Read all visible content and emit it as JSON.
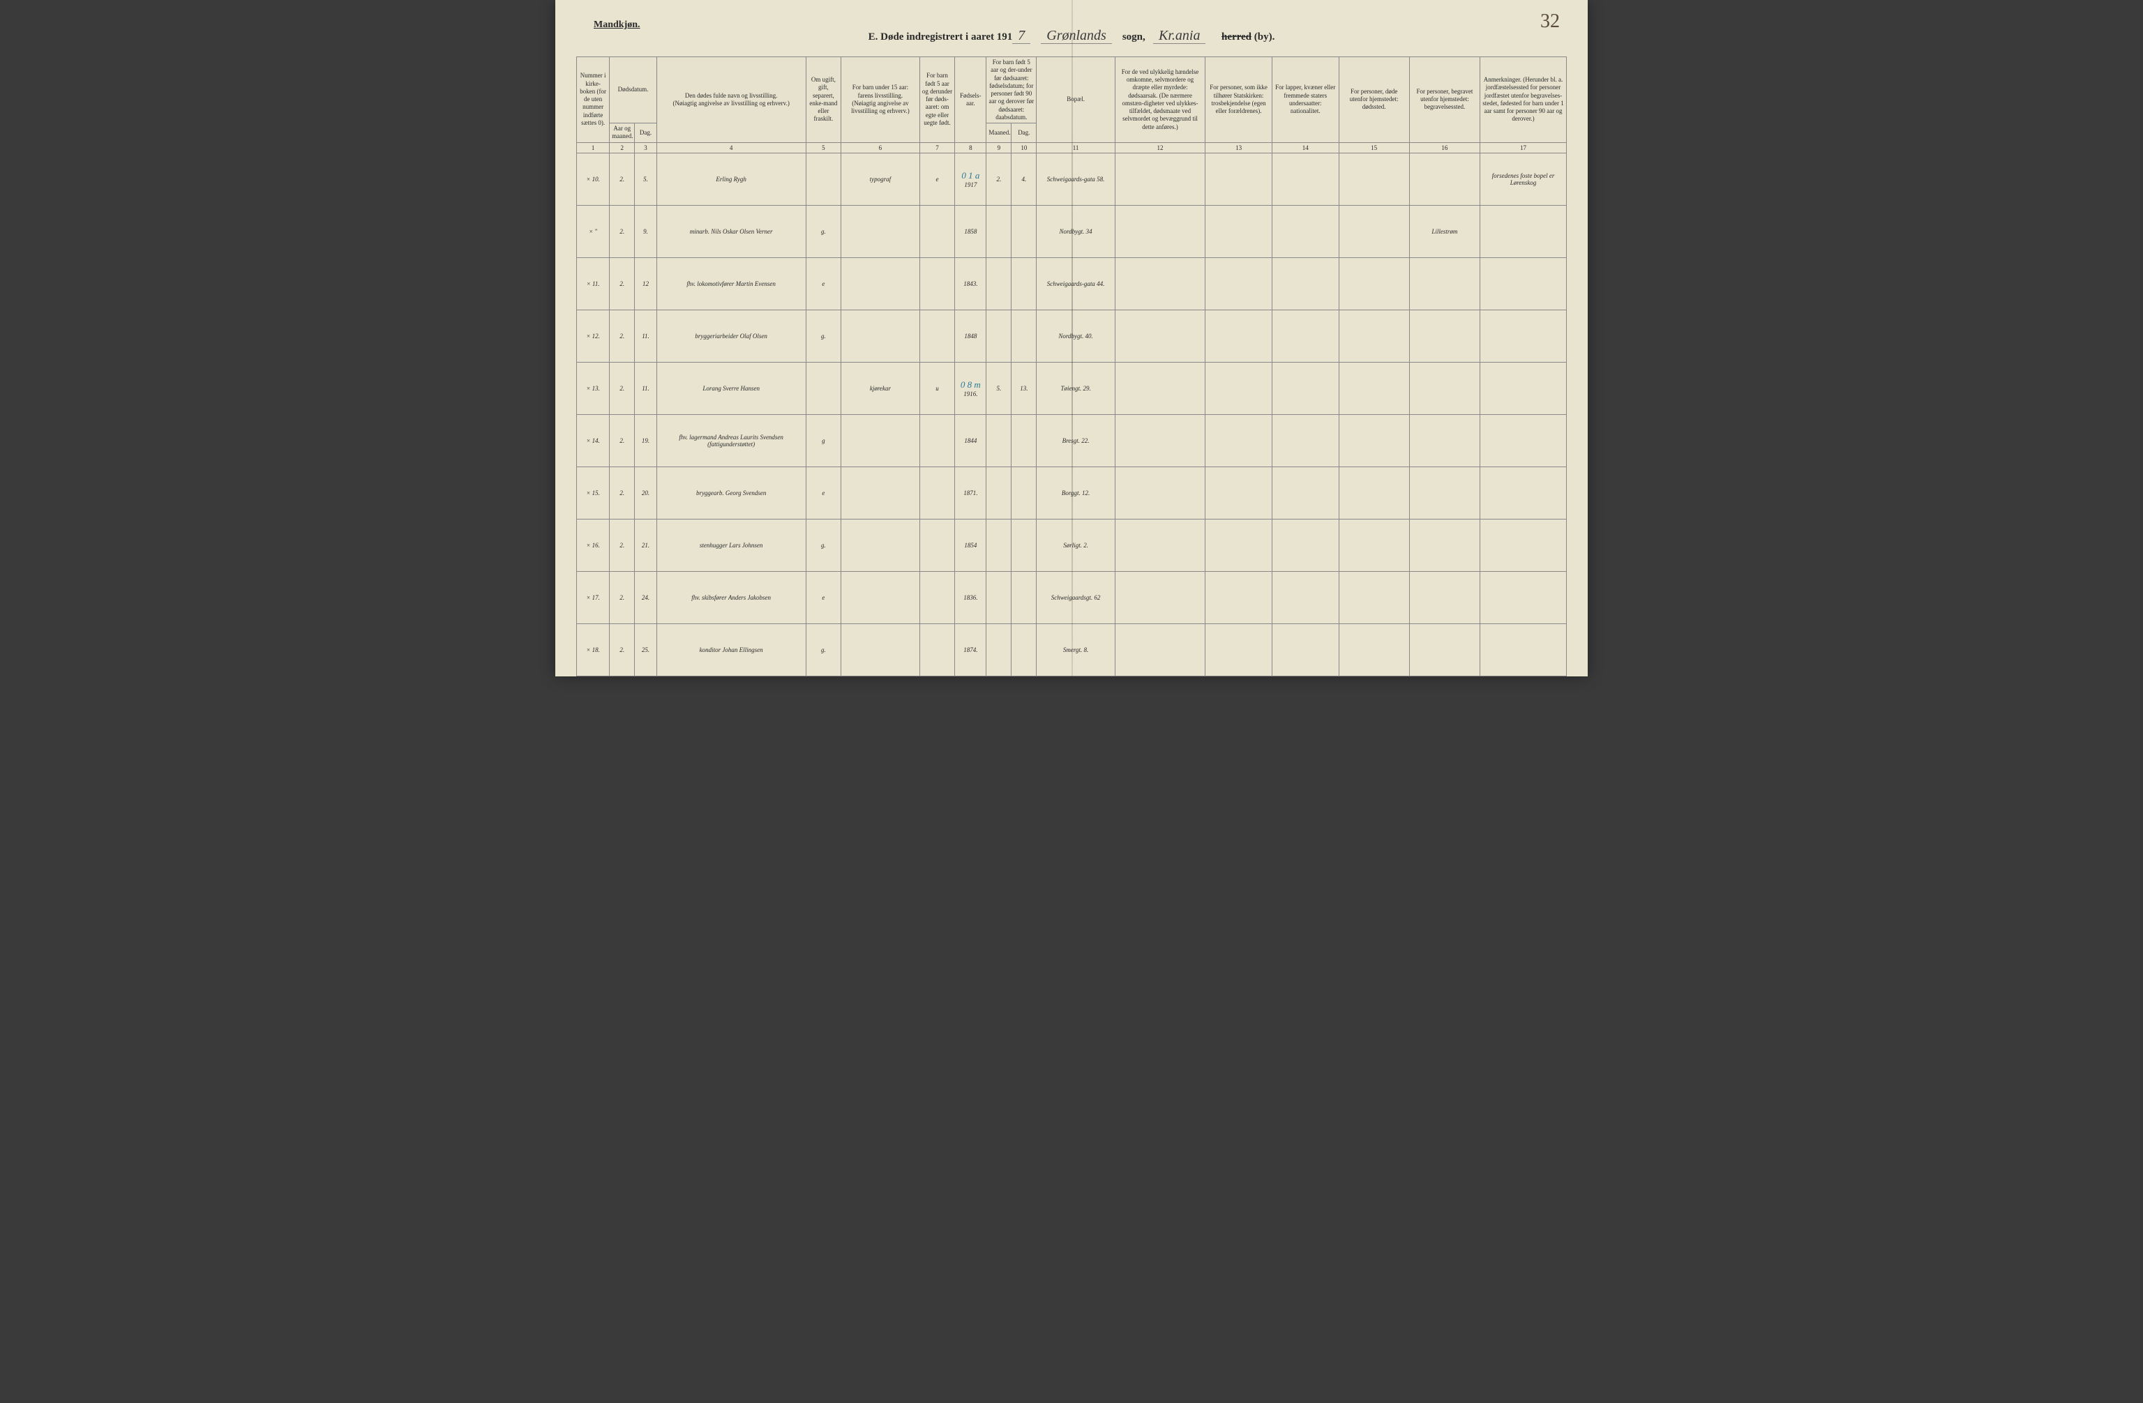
{
  "pageNumber": "32",
  "genderLabel": "Mandkjøn.",
  "titlePrefix": "E.  Døde indregistrert i aaret 191",
  "yearSuffix": "7",
  "parishLabel": "sogn,",
  "parishCursive1": "Grønlands",
  "parishCursive2": "Kr.ania",
  "herredStruck": "herred",
  "byLabel": "(by).",
  "headers": {
    "c1": "Nummer i kirke-boken (for de uten nummer indførte sættes 0).",
    "c2a": "Dødsdatum.",
    "c2b": "Aar og maaned.",
    "c2c": "Dag.",
    "c4a": "Den dødes fulde navn og livsstilling.",
    "c4b": "(Nøiagtig angivelse av livsstilling og erhverv.)",
    "c5": "Om ugift, gift, separert, enke-mand eller fraskilt.",
    "c6a": "For barn under 15 aar:",
    "c6b": "farens livsstilling.",
    "c6c": "(Nøiagtig angivelse av livsstilling og erhverv.)",
    "c7": "For barn født 5 aar og derunder før døds-aaret: om egte eller uegte født.",
    "c8": "Fødsels-aar.",
    "c9": "For barn født 5 aar og der-under før dødsaaret: fødselsdatum; for personer født 90 aar og derover før dødsaaret: daabsdatum.",
    "c9a": "Maaned.",
    "c9b": "Dag.",
    "c11": "Bopæl.",
    "c12": "For de ved ulykkelig hændelse omkomne, selvmordere og dræpte eller myrdede: dødsaarsak. (De nærmere omstæn-digheter ved ulykkes-tilfældet, dødsmaate ved selvmordet og bevæggrund til dette anføres.)",
    "c13": "For personer, som ikke tilhører Statskirken: trosbekjendelse (egen eller forældrenes).",
    "c14": "For lapper, kvæner eller fremmede staters undersaatter: nationalitet.",
    "c15": "For personer, døde utenfor hjemstedet: dødssted.",
    "c16": "For personer, begravet utenfor hjemstedet: begravelsessted.",
    "c17": "Anmerkninger. (Herunder bl. a. jordfæstelsessted for personer jordfæstet utenfor begravelses-stedet, fødested for barn under 1 aar samt for personer 90 aar og derover.)"
  },
  "colNums": [
    "1",
    "2",
    "3",
    "4",
    "5",
    "6",
    "7",
    "8",
    "9",
    "10",
    "11",
    "12",
    "13",
    "14",
    "15",
    "16",
    "17"
  ],
  "annotations": {
    "r1": "0 1 a",
    "r5": "0 8 m"
  },
  "rows": [
    {
      "x": "×",
      "n": "10.",
      "m": "2.",
      "d": "5.",
      "name": "Erling Rygh",
      "status": "",
      "col6": "typograf",
      "c7": "e",
      "yr": "1917",
      "mm": "2.",
      "dd": "4.",
      "addr": "Schweigaards-gata 58.",
      "c16": "",
      "c17": "forsedenes foste bopel er Lørenskog"
    },
    {
      "x": "×",
      "n": "\"",
      "m": "2.",
      "d": "9.",
      "name": "minarb. Nils Oskar Olsen Verner",
      "status": "g.",
      "col6": "",
      "c7": "",
      "yr": "1858",
      "mm": "",
      "dd": "",
      "addr": "Nordbygt. 34",
      "c16": "Lillestrøm",
      "c17": ""
    },
    {
      "x": "×",
      "n": "11.",
      "m": "2.",
      "d": "12",
      "name": "fhv. lokomotivfører Martin Evensen",
      "status": "e",
      "col6": "",
      "c7": "",
      "yr": "1843.",
      "mm": "",
      "dd": "",
      "addr": "Schweigaards-gata 44.",
      "c16": "",
      "c17": ""
    },
    {
      "x": "×",
      "n": "12.",
      "m": "2.",
      "d": "11.",
      "name": "bryggeriarbeider Olaf Olsen",
      "status": "g.",
      "col6": "",
      "c7": "",
      "yr": "1848",
      "mm": "",
      "dd": "",
      "addr": "Nordbygt. 40.",
      "c16": "",
      "c17": ""
    },
    {
      "x": "×",
      "n": "13.",
      "m": "2.",
      "d": "11.",
      "name": "Lorang Sverre Hansen",
      "status": "",
      "col6": "kjørekar",
      "c7": "u",
      "yr": "1916.",
      "mm": "5.",
      "dd": "13.",
      "addr": "Tøiengt. 29.",
      "c16": "",
      "c17": ""
    },
    {
      "x": "×",
      "n": "14.",
      "m": "2.",
      "d": "19.",
      "name": "fhv. lagermand Andreas Laurits Svendsen (fattigunderstøttet)",
      "status": "g",
      "col6": "",
      "c7": "",
      "yr": "1844",
      "mm": "",
      "dd": "",
      "addr": "Bresgt. 22.",
      "c16": "",
      "c17": ""
    },
    {
      "x": "×",
      "n": "15.",
      "m": "2.",
      "d": "20.",
      "name": "bryggearb. Georg Svendsen",
      "status": "e",
      "col6": "",
      "c7": "",
      "yr": "1871.",
      "mm": "",
      "dd": "",
      "addr": "Borggt. 12.",
      "c16": "",
      "c17": ""
    },
    {
      "x": "×",
      "n": "16.",
      "m": "2.",
      "d": "21.",
      "name": "stenhugger Lars Johnsen",
      "status": "g.",
      "col6": "",
      "c7": "",
      "yr": "1854",
      "mm": "",
      "dd": "",
      "addr": "Sørligt. 2.",
      "c16": "",
      "c17": ""
    },
    {
      "x": "×",
      "n": "17.",
      "m": "2.",
      "d": "24.",
      "name": "fhv. skibsfører Anders Jakobsen",
      "status": "e",
      "col6": "",
      "c7": "",
      "yr": "1836.",
      "mm": "",
      "dd": "",
      "addr": "Schweigaardsgt. 62",
      "c16": "",
      "c17": ""
    },
    {
      "x": "×",
      "n": "18.",
      "m": "2.",
      "d": "25.",
      "name": "konditor Johan Ellingsen",
      "status": "g.",
      "col6": "",
      "c7": "",
      "yr": "1874.",
      "mm": "",
      "dd": "",
      "addr": "Smergt. 8.",
      "c16": "",
      "c17": ""
    }
  ]
}
